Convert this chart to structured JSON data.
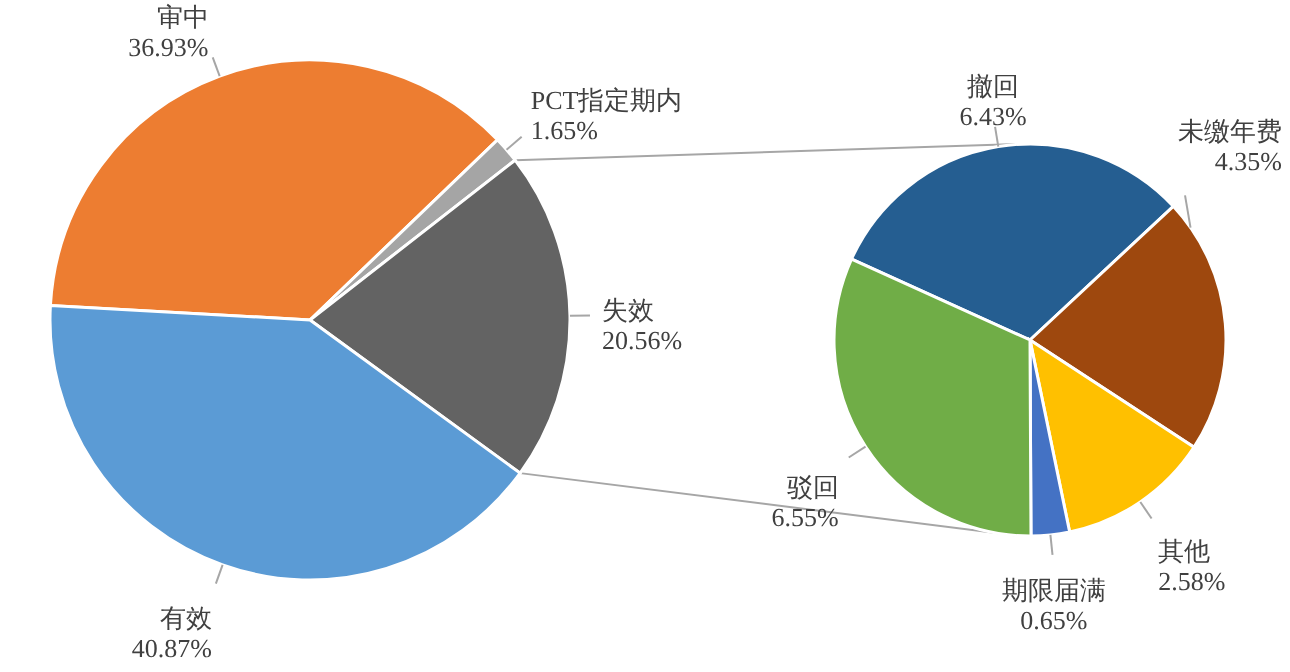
{
  "chart_data": [
    {
      "type": "pie",
      "categories": [
        "审中",
        "PCT指定期内",
        "失效",
        "有效"
      ],
      "values": [
        36.93,
        1.65,
        20.56,
        40.87
      ],
      "colors": [
        "#ed7d31",
        "#a5a5a5",
        "#636363",
        "#5b9bd5"
      ],
      "value_labels": [
        "36.93%",
        "1.65%",
        "20.56%",
        "40.87%"
      ]
    },
    {
      "type": "pie",
      "categories": [
        "撤回",
        "未缴年费",
        "其他",
        "期限届满",
        "驳回"
      ],
      "values": [
        6.43,
        4.35,
        2.58,
        0.65,
        6.55
      ],
      "colors": [
        "#255e91",
        "#9e480e",
        "#ffc000",
        "#4472c4",
        "#70ad47"
      ],
      "value_labels": [
        "6.43%",
        "4.35%",
        "2.58%",
        "0.65%",
        "6.55%"
      ]
    }
  ]
}
